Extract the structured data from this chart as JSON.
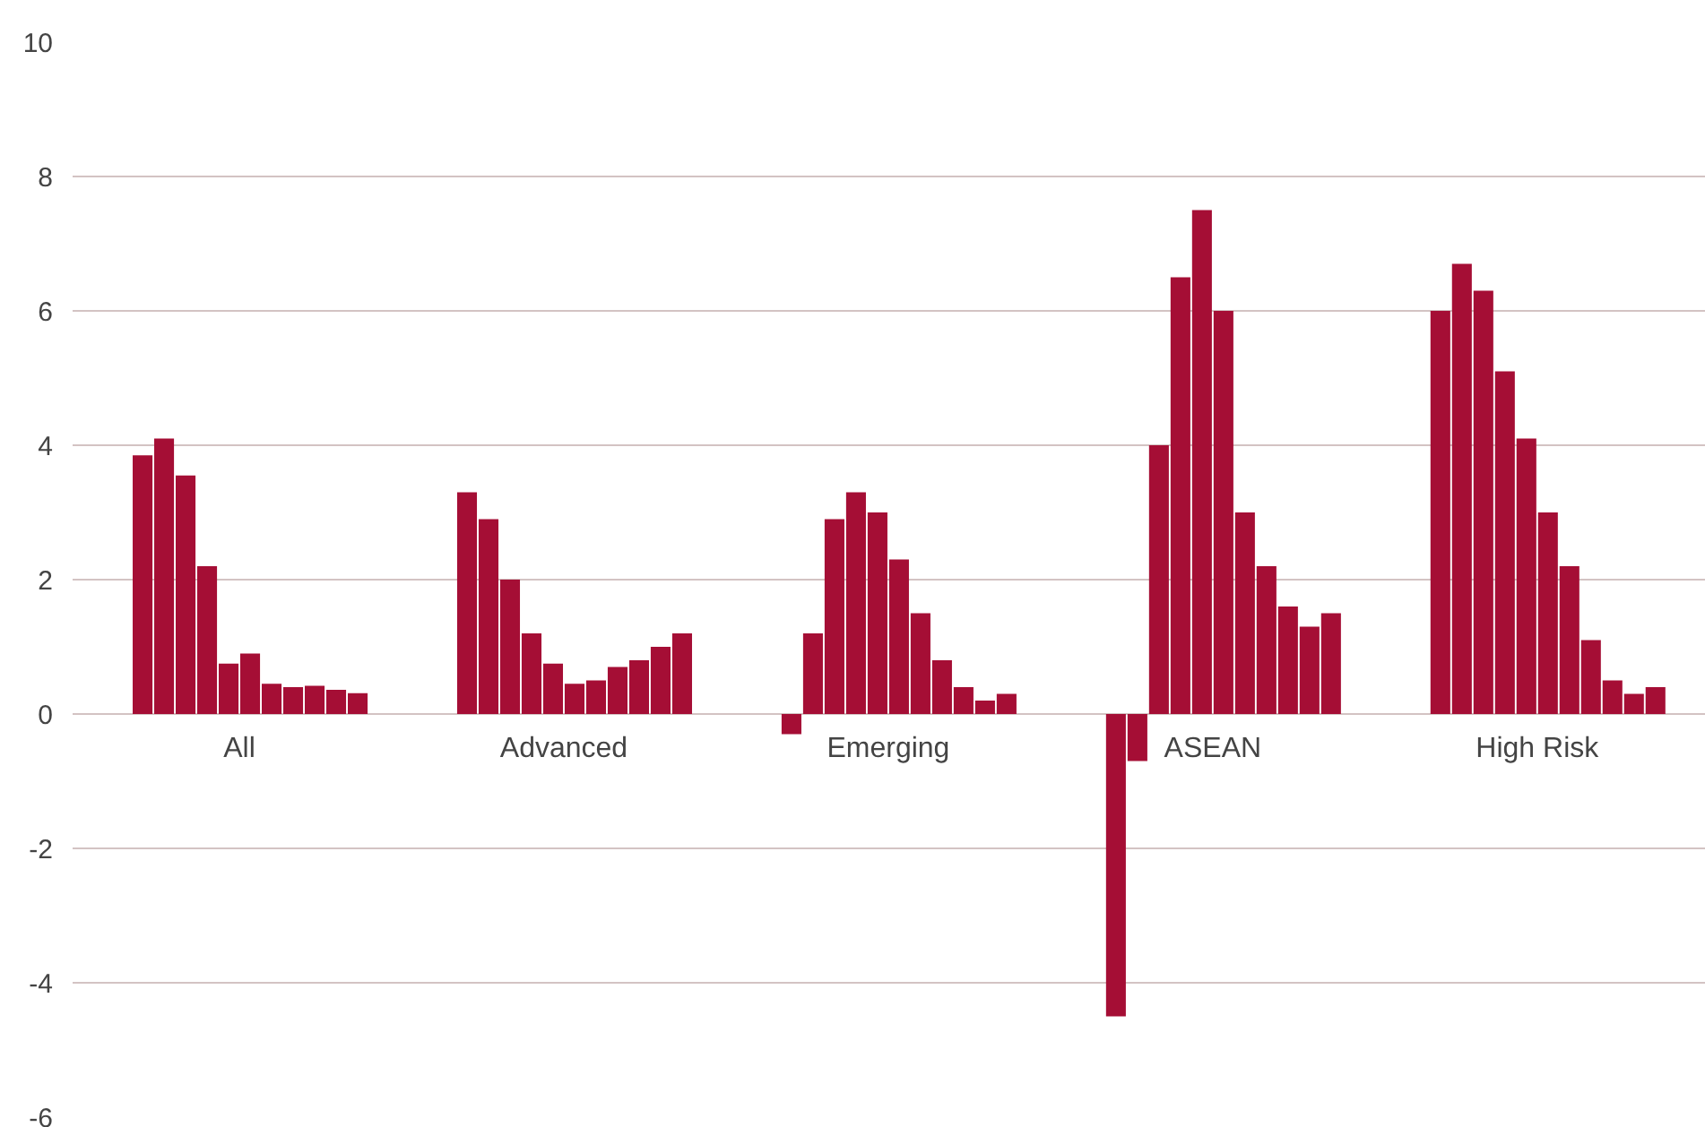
{
  "chart_data": {
    "type": "bar",
    "categories": [
      "All",
      "Advanced",
      "Emerging",
      "ASEAN",
      "High Risk"
    ],
    "series": [
      {
        "color": "#a50e35",
        "values": [
          0,
          0,
          0,
          0,
          0
        ]
      },
      {
        "color": "#a50e35",
        "values": [
          3.85,
          3.3,
          -0.3,
          -4.5,
          6.0
        ]
      },
      {
        "color": "#a50e35",
        "values": [
          4.1,
          2.9,
          1.2,
          -0.7,
          6.7
        ]
      },
      {
        "color": "#a50e35",
        "values": [
          3.55,
          2.0,
          2.9,
          4.0,
          6.3
        ]
      },
      {
        "color": "#a50e35",
        "values": [
          2.2,
          1.2,
          3.3,
          6.5,
          5.1
        ]
      },
      {
        "color": "#a50e35",
        "values": [
          0.75,
          0.75,
          3.0,
          7.5,
          4.1
        ]
      },
      {
        "color": "#a50e35",
        "values": [
          0.9,
          0.45,
          2.3,
          6.0,
          3.0
        ]
      },
      {
        "color": "#a50e35",
        "values": [
          0.45,
          0.5,
          1.5,
          3.0,
          2.2
        ]
      },
      {
        "color": "#a50e35",
        "values": [
          0.4,
          0.7,
          0.8,
          2.2,
          1.1
        ]
      },
      {
        "color": "#a50e35",
        "values": [
          0.42,
          0.8,
          0.4,
          1.6,
          0.5
        ]
      },
      {
        "color": "#a50e35",
        "values": [
          0.36,
          1.0,
          0.2,
          1.3,
          0.3
        ]
      },
      {
        "color": "#a50e35",
        "values": [
          0.31,
          1.2,
          0.3,
          1.5,
          0.4
        ]
      }
    ],
    "ylim": [
      -6,
      10
    ],
    "yticks": [
      -6,
      -4,
      -2,
      0,
      2,
      4,
      6,
      8,
      10
    ],
    "grid": "y"
  }
}
